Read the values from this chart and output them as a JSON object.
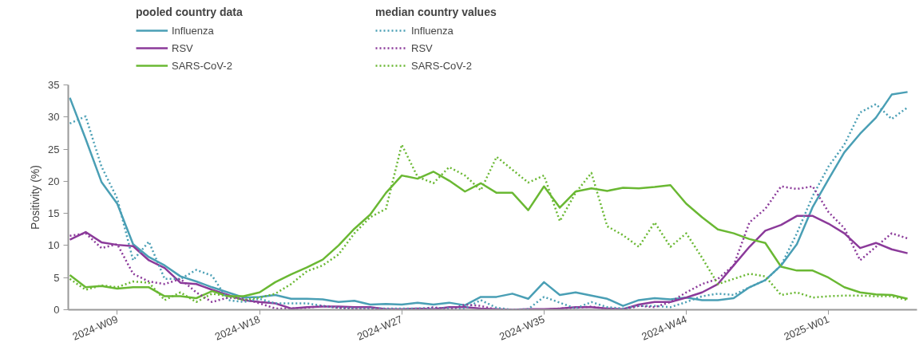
{
  "chart_data": {
    "type": "line",
    "ylabel": "Positivity (%)",
    "legend_title": [
      "pooled country data",
      "median country values"
    ],
    "legend": "top left",
    "grid": false,
    "categories": [
      null,
      null,
      null,
      "2024-W09",
      null,
      null,
      null,
      null,
      null,
      null,
      null,
      null,
      "2024-W18",
      null,
      null,
      null,
      null,
      null,
      null,
      null,
      null,
      "2024-W27",
      null,
      null,
      null,
      null,
      null,
      null,
      null,
      null,
      "2024-W35",
      null,
      null,
      null,
      null,
      null,
      null,
      null,
      null,
      "2024-W44",
      null,
      null,
      null,
      null,
      null,
      null,
      null,
      null,
      "2025-W01",
      null,
      null,
      null,
      null,
      null
    ],
    "ylim": [
      0,
      35
    ],
    "yticks": [
      0,
      5,
      10,
      15,
      20,
      25,
      30,
      35
    ],
    "series": [
      {
        "name": "Influenza",
        "color": "#4a9fb5",
        "line_style": "solid",
        "values": [
          33,
          26.6,
          19.9,
          16.5,
          10.2,
          8.2,
          6.9,
          5.2,
          4.4,
          3.5,
          2.7,
          1.9,
          2.0,
          2.3,
          1.7,
          1.7,
          1.6,
          1.2,
          1.4,
          0.8,
          0.9,
          0.8,
          1.1,
          0.8,
          1.1,
          0.7,
          2.0,
          2.0,
          2.5,
          1.7,
          4.3,
          2.3,
          2.7,
          2.2,
          1.7,
          0.6,
          1.5,
          1.8,
          1.6,
          1.9,
          1.5,
          1.5,
          1.8,
          3.5,
          4.6,
          6.9,
          10.2,
          16,
          20.3,
          24.5,
          27.4,
          29.9,
          33.5,
          33.9
        ]
      },
      {
        "name": "RSV",
        "color": "#8b3a9a",
        "line_style": "solid",
        "values": [
          10.9,
          12.1,
          10.5,
          10.1,
          9.9,
          7.7,
          6.5,
          4.2,
          4.0,
          3.1,
          2.3,
          1.5,
          1.2,
          1.0,
          0.2,
          0.4,
          0.5,
          0.5,
          0.4,
          0.4,
          0.1,
          0.1,
          0.2,
          0.1,
          0.4,
          0.4,
          0.2,
          0.1,
          0,
          0.1,
          0.1,
          0.2,
          0.4,
          0.4,
          0.2,
          0.1,
          0.8,
          1.2,
          1.2,
          1.9,
          2.7,
          4,
          6.9,
          9.8,
          12.3,
          13.2,
          14.6,
          14.6,
          13.4,
          11.9,
          9.6,
          10.4,
          9.4,
          8.8
        ]
      },
      {
        "name": "SARS-CoV-2",
        "color": "#6ab833",
        "line_style": "solid",
        "values": [
          5.4,
          3.5,
          3.7,
          3.3,
          3.5,
          3.5,
          2.1,
          2.1,
          1.8,
          2.9,
          2.1,
          2.1,
          2.7,
          4.3,
          5.5,
          6.6,
          7.8,
          10,
          12.6,
          14.8,
          18.2,
          20.9,
          20.4,
          21.5,
          20.1,
          18.4,
          19.7,
          18.2,
          18.2,
          15.5,
          19.2,
          15.9,
          18.4,
          18.9,
          18.5,
          19.0,
          18.9,
          19.1,
          19.4,
          16.5,
          14.4,
          12.5,
          11.9,
          11,
          10.4,
          6.7,
          6.1,
          6.1,
          5.0,
          3.5,
          2.7,
          2.4,
          2.3,
          1.7
        ]
      },
      {
        "name": "Influenza",
        "color": "#4a9fb5",
        "line_style": "dotted",
        "values": [
          29,
          30.1,
          22.3,
          17.3,
          7.7,
          10.6,
          4.8,
          4.8,
          6.2,
          5.3,
          1.5,
          1.2,
          1.7,
          1.0,
          1.0,
          1.0,
          0.6,
          0.3,
          0.2,
          0.2,
          0.2,
          0.2,
          0.2,
          0.3,
          0.2,
          0.2,
          1.5,
          0.3,
          0,
          0.1,
          2.0,
          1.1,
          0.2,
          1.2,
          0.4,
          0.2,
          0.6,
          0.6,
          0.4,
          1.2,
          2.1,
          2.5,
          2.3,
          3.5,
          4.6,
          6.9,
          11.9,
          17.7,
          22.3,
          25.7,
          30.7,
          32,
          29.7,
          31.5
        ]
      },
      {
        "name": "RSV",
        "color": "#8b3a9a",
        "line_style": "dotted",
        "values": [
          11.5,
          11.9,
          9.6,
          10.2,
          5.6,
          4.4,
          4.0,
          4.8,
          2.7,
          1.2,
          1.9,
          1.7,
          1.0,
          0.2,
          0.2,
          0.3,
          0.6,
          0.3,
          0.1,
          0.1,
          0.1,
          0,
          0,
          0.4,
          0,
          0.8,
          0.6,
          0,
          0,
          0,
          0,
          0.2,
          0.3,
          0.5,
          0.1,
          0,
          0.6,
          0.4,
          1.2,
          2.7,
          4,
          4.8,
          6.9,
          13.6,
          15.7,
          19.2,
          18.8,
          19.2,
          15.2,
          12.7,
          7.7,
          9.8,
          11.9,
          11.1
        ]
      },
      {
        "name": "SARS-CoV-2",
        "color": "#6ab833",
        "line_style": "dotted",
        "values": [
          4.8,
          3.1,
          3.8,
          3.5,
          4.4,
          4.2,
          1.5,
          2.7,
          1.2,
          2.5,
          2.1,
          1.5,
          1.9,
          2.5,
          4.0,
          6.0,
          6.9,
          8.6,
          11.9,
          14.4,
          15.7,
          25.7,
          20.7,
          19.7,
          22.2,
          20.9,
          18.6,
          23.8,
          21.8,
          19.8,
          20.9,
          13.8,
          18.2,
          21.3,
          13,
          11.6,
          9.8,
          13.6,
          9.8,
          11.9,
          8.1,
          4,
          4.8,
          5.6,
          5.2,
          2.3,
          2.7,
          1.9,
          2.1,
          2.2,
          2.2,
          2.1,
          2.1,
          1.5
        ]
      }
    ]
  }
}
